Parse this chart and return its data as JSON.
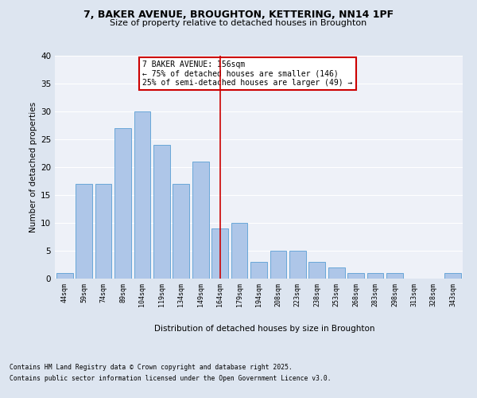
{
  "title_line1": "7, BAKER AVENUE, BROUGHTON, KETTERING, NN14 1PF",
  "title_line2": "Size of property relative to detached houses in Broughton",
  "xlabel": "Distribution of detached houses by size in Broughton",
  "ylabel": "Number of detached properties",
  "categories": [
    "44sqm",
    "59sqm",
    "74sqm",
    "89sqm",
    "104sqm",
    "119sqm",
    "134sqm",
    "149sqm",
    "164sqm",
    "179sqm",
    "194sqm",
    "208sqm",
    "223sqm",
    "238sqm",
    "253sqm",
    "268sqm",
    "283sqm",
    "298sqm",
    "313sqm",
    "328sqm",
    "343sqm"
  ],
  "values": [
    1,
    17,
    17,
    27,
    30,
    24,
    17,
    21,
    9,
    10,
    3,
    5,
    5,
    3,
    2,
    1,
    1,
    1,
    0,
    0,
    1
  ],
  "bar_color": "#aec6e8",
  "bar_edge_color": "#5a9fd4",
  "vline_x": 8.0,
  "vline_color": "#cc0000",
  "annotation_title": "7 BAKER AVENUE: 156sqm",
  "annotation_line2": "← 75% of detached houses are smaller (146)",
  "annotation_line3": "25% of semi-detached houses are larger (49) →",
  "annotation_box_color": "#ffffff",
  "annotation_box_edge": "#cc0000",
  "ylim": [
    0,
    40
  ],
  "yticks": [
    0,
    5,
    10,
    15,
    20,
    25,
    30,
    35,
    40
  ],
  "bg_color": "#dde5f0",
  "plot_bg_color": "#eef1f8",
  "footer_line1": "Contains HM Land Registry data © Crown copyright and database right 2025.",
  "footer_line2": "Contains public sector information licensed under the Open Government Licence v3.0."
}
